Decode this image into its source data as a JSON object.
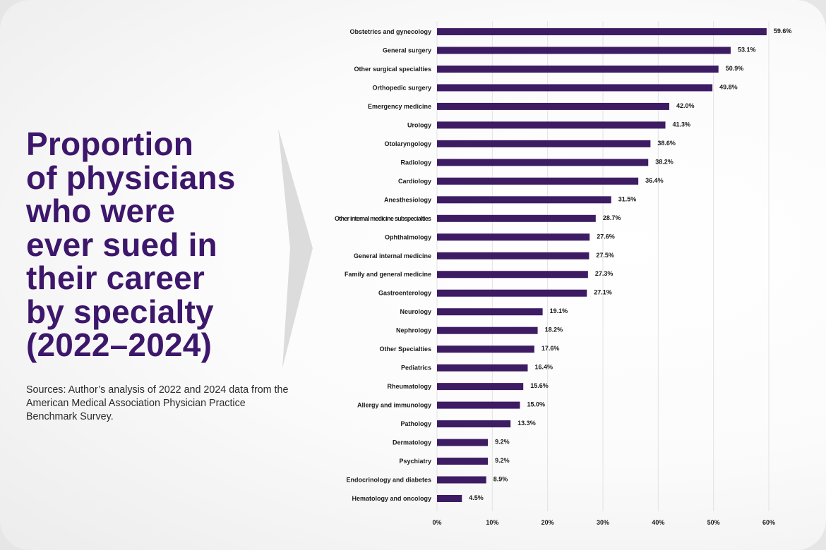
{
  "title_lines": [
    "Proportion",
    "of physicians",
    "who were",
    "ever sued in",
    "their career",
    "by specialty",
    "(2022–2024)"
  ],
  "sources": "Sources: Author’s analysis of 2022 and 2024 data from the American Medical Association Physician Practice Benchmark Survey.",
  "colors": {
    "bar": "#3d1c64",
    "title": "#3d176b",
    "grid": "#e2e2e2",
    "chevron": "#dcdcdc"
  },
  "chart_data": {
    "type": "bar",
    "orientation": "horizontal",
    "title": "Proportion of physicians who were ever sued in their career by specialty (2022–2024)",
    "categories": [
      "Obstetrics and gynecology",
      "General surgery",
      "Other surgical specialties",
      "Orthopedic surgery",
      "Emergency medicine",
      "Urology",
      "Otolaryngology",
      "Radiology",
      "Cardiology",
      "Anesthesiology",
      "Other internal medicine subspecialties",
      "Ophthalmology",
      "General internal medicine",
      "Family and general medicine",
      "Gastroenterology",
      "Neurology",
      "Nephrology",
      "Other Specialties",
      "Pediatrics",
      "Rheumatology",
      "Allergy and immunology",
      "Pathology",
      "Dermatology",
      "Psychiatry",
      "Endocrinology and diabetes",
      "Hematology and oncology"
    ],
    "values": [
      59.6,
      53.1,
      50.9,
      49.8,
      42.0,
      41.3,
      38.6,
      38.2,
      36.4,
      31.5,
      28.7,
      27.6,
      27.5,
      27.3,
      27.1,
      19.1,
      18.2,
      17.6,
      16.4,
      15.6,
      15.0,
      13.3,
      9.2,
      9.2,
      8.9,
      4.5
    ],
    "value_labels": [
      "59.6%",
      "53.1%",
      "50.9%",
      "49.8%",
      "42.0%",
      "41.3%",
      "38.6%",
      "38.2%",
      "36.4%",
      "31.5%",
      "28.7%",
      "27.6%",
      "27.5%",
      "27.3%",
      "27.1%",
      "19.1%",
      "18.2%",
      "17.6%",
      "16.4%",
      "15.6%",
      "15.0%",
      "13.3%",
      "9.2%",
      "9.2%",
      "8.9%",
      "4.5%"
    ],
    "xlim": [
      0,
      60
    ],
    "xticks": [
      "0%",
      "10%",
      "20%",
      "30%",
      "40%",
      "50%",
      "60%"
    ],
    "xlabel": "",
    "ylabel": "",
    "grid": "vertical",
    "legend": "none"
  }
}
